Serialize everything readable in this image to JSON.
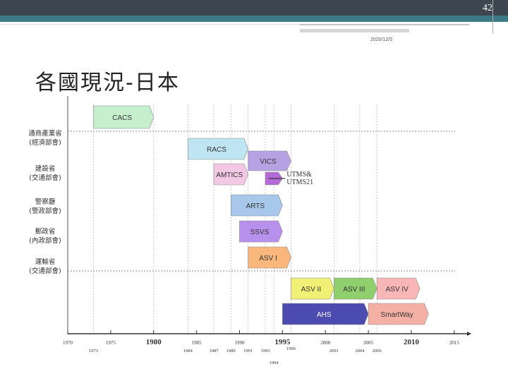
{
  "slide": {
    "page_number": "42",
    "date": "2020/12/5",
    "title": "各國現況-日本"
  },
  "chart_data": {
    "type": "timeline",
    "agencies": [
      {
        "label": "通商產業省\n(經濟部會)"
      },
      {
        "label": "建設省\n(交通部會)"
      },
      {
        "label": "警察廳\n(警政部會)"
      },
      {
        "label": "郵政省\n(內政部會)"
      },
      {
        "label": "運輸省\n(交通部會)"
      }
    ],
    "bars": [
      {
        "name": "CACS",
        "start": 1973,
        "end": 1980,
        "color": "#c6efce"
      },
      {
        "name": "RACS",
        "start": 1984,
        "end": 1991,
        "color": "#bfe4f2"
      },
      {
        "name": "VICS",
        "start": 1991,
        "end": 1996,
        "color": "#b6a2e3"
      },
      {
        "name": "AMTICS",
        "start": 1987,
        "end": 1991,
        "color": "#f2c8e4"
      },
      {
        "name": "",
        "start": 1993,
        "end": 1995,
        "color": "#b36ad6"
      },
      {
        "name": "ARTS",
        "start": 1989,
        "end": 1995,
        "color": "#a7c8ea"
      },
      {
        "name": "SSVS",
        "start": 1990,
        "end": 1995,
        "color": "#b891ec"
      },
      {
        "name": "ASV I",
        "start": 1991,
        "end": 1996,
        "color": "#f9b77d"
      },
      {
        "name": "ASV II",
        "start": 1996,
        "end": 2001,
        "color": "#f0ef76"
      },
      {
        "name": "ASV III",
        "start": 2001,
        "end": 2006,
        "color": "#8fcf6e"
      },
      {
        "name": "ASV IV",
        "start": 2006,
        "end": 2011,
        "color": "#f8b6b6"
      },
      {
        "name": "AHS",
        "start": 1995,
        "end": 2005,
        "color": "#4b4bb0"
      },
      {
        "name": "SmartWay",
        "start": 2005,
        "end": 2012,
        "color": "#f5b0a6"
      }
    ],
    "annotation": "UTMS&\nUTMS21",
    "x_ticks_major": [
      "1970",
      "1975",
      "1980",
      "1985",
      "1990",
      "1995",
      "2000",
      "2005",
      "2010",
      "2015"
    ],
    "x_ticks_minor": [
      "1973",
      "1984",
      "1987",
      "1989",
      "1991",
      "1993",
      "1994",
      "1996",
      "2001",
      "2004",
      "2006"
    ]
  }
}
